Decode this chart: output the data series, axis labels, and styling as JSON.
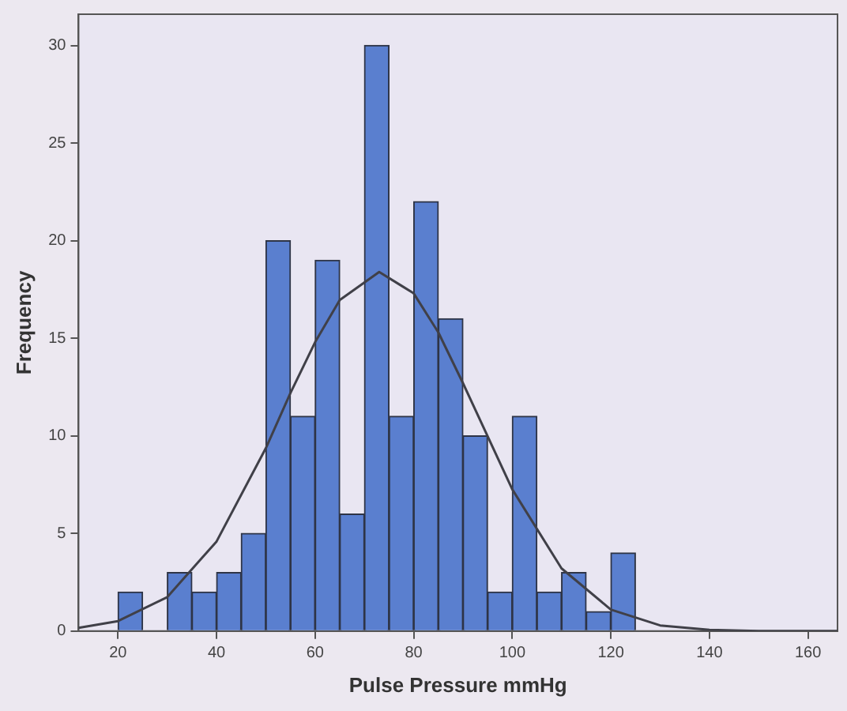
{
  "chart_data": {
    "type": "histogram",
    "xlabel": "Pulse Pressure mmHg",
    "ylabel": "Frequency",
    "bins": [
      20,
      25,
      30,
      35,
      40,
      45,
      50,
      55,
      60,
      65,
      70,
      75,
      80,
      85,
      90,
      95,
      100,
      105,
      110,
      115,
      120,
      125
    ],
    "values": [
      2,
      0,
      3,
      2,
      3,
      5,
      20,
      11,
      19,
      6,
      30,
      11,
      22,
      16,
      10,
      2,
      11,
      2,
      3,
      1,
      4
    ],
    "color": "#5a7fcf",
    "series": [
      {
        "type": "line",
        "color": "#404048",
        "x": [
          12,
          20,
          30,
          40,
          50,
          55,
          60,
          65,
          73,
          80,
          85,
          90,
          100,
          110,
          120,
          130,
          140,
          150,
          166
        ],
        "values": [
          0.16,
          0.51,
          1.74,
          4.59,
          9.37,
          12.2,
          14.8,
          16.96,
          18.4,
          17.3,
          15.3,
          12.7,
          7.26,
          3.21,
          1.1,
          0.29,
          0.06,
          0,
          0
        ]
      }
    ],
    "xlim": [
      12,
      166
    ],
    "xticks": [
      20,
      40,
      60,
      80,
      100,
      120,
      140,
      160
    ],
    "ylim": [
      0,
      31.6
    ],
    "yticks": [
      0,
      5,
      10,
      15,
      20,
      25,
      30
    ],
    "grid": false,
    "legend": false,
    "marker": "none",
    "line_style": "solid"
  }
}
